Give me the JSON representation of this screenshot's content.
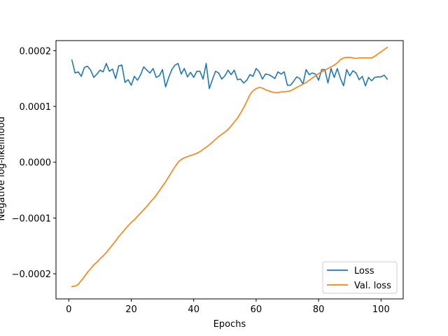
{
  "chart_data": {
    "type": "line",
    "title": "",
    "xlabel": "Epochs",
    "ylabel": "Negative log-likelihood",
    "xlim": [
      -4.1,
      107.1
    ],
    "ylim": [
      -0.000245,
      0.000218
    ],
    "xticks": [
      0,
      20,
      40,
      60,
      80,
      100
    ],
    "xtick_labels": [
      "0",
      "20",
      "40",
      "60",
      "80",
      "100"
    ],
    "yticks": [
      -0.0002,
      -0.0001,
      0.0,
      0.0001,
      0.0002
    ],
    "ytick_labels": [
      "−0.0002",
      "−0.0001",
      "0.0000",
      "0.0001",
      "0.0002"
    ],
    "grid": false,
    "legend_position": "lower-right",
    "series": [
      {
        "name": "Loss",
        "color": "#1f77b4",
        "x": [
          1,
          2,
          3,
          4,
          5,
          6,
          7,
          8,
          9,
          10,
          11,
          12,
          13,
          14,
          15,
          16,
          17,
          18,
          19,
          20,
          21,
          22,
          23,
          24,
          25,
          26,
          27,
          28,
          29,
          30,
          31,
          32,
          33,
          34,
          35,
          36,
          37,
          38,
          39,
          40,
          41,
          42,
          43,
          44,
          45,
          46,
          47,
          48,
          49,
          50,
          51,
          52,
          53,
          54,
          55,
          56,
          57,
          58,
          59,
          60,
          61,
          62,
          63,
          64,
          65,
          66,
          67,
          68,
          69,
          70,
          71,
          72,
          73,
          74,
          75,
          76,
          77,
          78,
          79,
          80,
          81,
          82,
          83,
          84,
          85,
          86,
          87,
          88,
          89,
          90,
          91,
          92,
          93,
          94,
          95,
          96,
          97,
          98,
          99,
          100,
          101,
          102
        ],
        "values": [
          0.000183,
          0.00016,
          0.000162,
          0.000154,
          0.00017,
          0.000172,
          0.000165,
          0.000152,
          0.000158,
          0.000165,
          0.000162,
          0.000177,
          0.000163,
          0.000167,
          0.00015,
          0.000173,
          0.000174,
          0.000143,
          0.000148,
          0.000138,
          0.000154,
          0.000147,
          0.000157,
          0.000171,
          0.000165,
          0.00016,
          0.000168,
          0.000152,
          0.000155,
          0.000166,
          0.000135,
          0.000152,
          0.000166,
          0.000174,
          0.000177,
          0.000158,
          0.000168,
          0.000153,
          0.000161,
          0.000152,
          0.000163,
          0.000163,
          0.000149,
          0.000177,
          0.000132,
          0.000148,
          0.000163,
          0.00016,
          0.000149,
          0.000155,
          0.000165,
          0.000157,
          0.000165,
          0.000148,
          0.000149,
          0.000142,
          0.000147,
          0.000157,
          0.000154,
          0.000168,
          0.000162,
          0.000149,
          0.000158,
          0.000157,
          0.000154,
          0.00015,
          0.000162,
          0.000158,
          0.000162,
          0.000138,
          0.000138,
          0.000145,
          0.000153,
          0.00015,
          0.00014,
          0.000166,
          0.000157,
          0.00016,
          0.000158,
          0.000147,
          0.000166,
          0.000166,
          0.000142,
          0.000168,
          0.000152,
          0.000168,
          0.00015,
          0.000137,
          0.000166,
          0.000155,
          0.000164,
          0.00016,
          0.000148,
          0.000154,
          0.000137,
          0.000152,
          0.000146,
          0.000152,
          0.000153,
          0.000153,
          0.000156,
          0.000149
        ]
      },
      {
        "name": "Val. loss",
        "color": "#ff7f0e",
        "x": [
          1,
          2,
          3,
          4,
          5,
          6,
          7,
          8,
          9,
          10,
          11,
          12,
          13,
          14,
          15,
          16,
          17,
          18,
          19,
          20,
          21,
          22,
          23,
          24,
          25,
          26,
          27,
          28,
          29,
          30,
          31,
          32,
          33,
          34,
          35,
          36,
          37,
          38,
          39,
          40,
          41,
          42,
          43,
          44,
          45,
          46,
          47,
          48,
          49,
          50,
          51,
          52,
          53,
          54,
          55,
          56,
          57,
          58,
          59,
          60,
          61,
          62,
          63,
          64,
          65,
          66,
          67,
          68,
          69,
          70,
          71,
          72,
          73,
          74,
          75,
          76,
          77,
          78,
          79,
          80,
          81,
          82,
          83,
          84,
          85,
          86,
          87,
          88,
          89,
          90,
          91,
          92,
          93,
          94,
          95,
          96,
          97,
          98,
          99,
          100,
          101,
          102
        ],
        "values": [
          -0.000223,
          -0.000222,
          -0.000219,
          -0.000212,
          -0.000205,
          -0.000197,
          -0.000191,
          -0.000184,
          -0.000179,
          -0.000173,
          -0.000168,
          -0.000162,
          -0.000155,
          -0.000148,
          -0.000141,
          -0.000133,
          -0.000127,
          -0.00012,
          -0.000114,
          -0.000108,
          -0.000103,
          -9.7e-05,
          -9.1e-05,
          -8.5e-05,
          -7.9e-05,
          -7.2e-05,
          -6.6e-05,
          -5.9e-05,
          -5.1e-05,
          -4.3e-05,
          -3.5e-05,
          -2.6e-05,
          -1.7e-05,
          -8e-06,
          0.0,
          5e-06,
          8e-06,
          1e-05,
          1.2e-05,
          1.4e-05,
          1.6e-05,
          1.9e-05,
          2.3e-05,
          2.7e-05,
          3.1e-05,
          3.6e-05,
          4.1e-05,
          4.6e-05,
          5e-05,
          5.4e-05,
          5.9e-05,
          6.5e-05,
          7.2e-05,
          7.9e-05,
          8.8e-05,
          9.8e-05,
          0.000109,
          0.000121,
          0.000128,
          0.000132,
          0.000134,
          0.000133,
          0.00013,
          0.000128,
          0.000126,
          0.000125,
          0.000125,
          0.000126,
          0.000126,
          0.000127,
          0.000128,
          0.000131,
          0.000134,
          0.000137,
          0.00014,
          0.000143,
          0.000147,
          0.000151,
          0.000155,
          0.000159,
          0.000162,
          0.000165,
          0.000168,
          0.000171,
          0.000174,
          0.000178,
          0.000184,
          0.000187,
          0.000188,
          0.000188,
          0.000187,
          0.000186,
          0.000187,
          0.000187,
          0.000187,
          0.000187,
          0.000187,
          0.00019,
          0.000194,
          0.000198,
          0.000202,
          0.000206
        ]
      }
    ]
  }
}
